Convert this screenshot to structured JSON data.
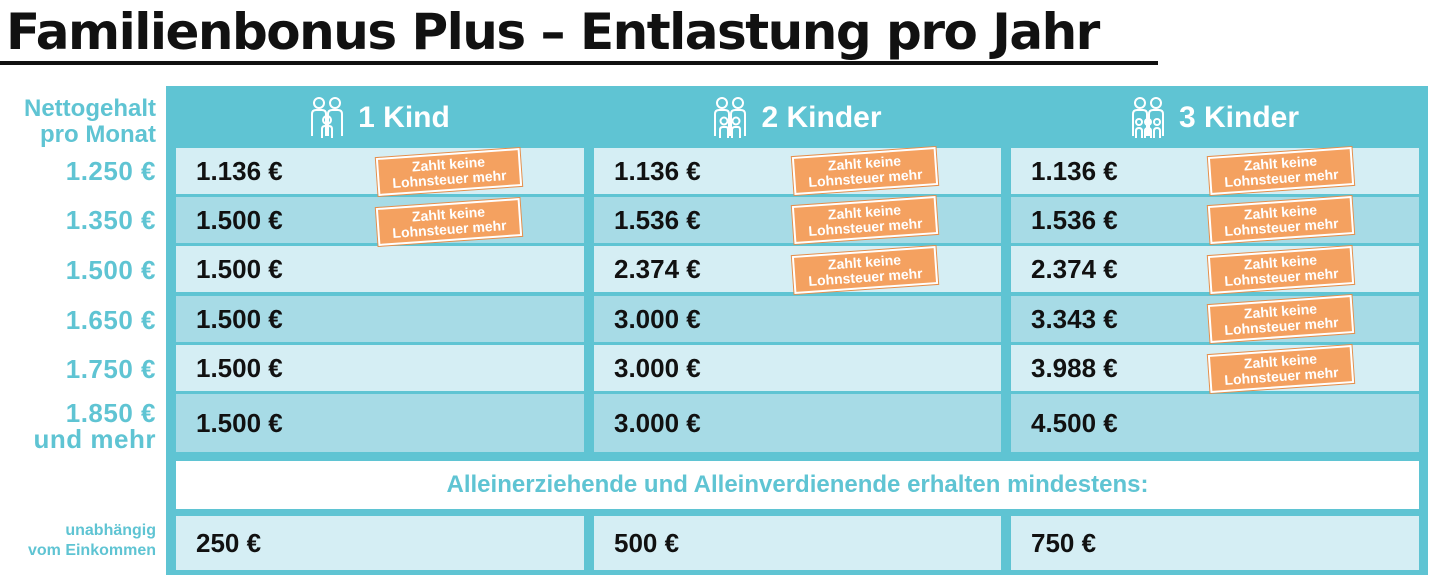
{
  "title": "Familienbonus Plus – Entlastung pro Jahr",
  "side": {
    "header_line1": "Nettogehalt",
    "header_line2": "pro Monat",
    "incomes": [
      "1.250 €",
      "1.350 €",
      "1.500 €",
      "1.650 €",
      "1.750 €",
      "1.850 €"
    ],
    "last_suffix": "und mehr",
    "footer_line1": "unabhängig",
    "footer_line2": "vom Einkommen"
  },
  "columns": [
    {
      "label": "1 Kind",
      "icon": "family-one-child-icon"
    },
    {
      "label": "2 Kinder",
      "icon": "family-two-children-icon"
    },
    {
      "label": "3 Kinder",
      "icon": "family-three-children-icon"
    }
  ],
  "rows": [
    [
      "1.136 €",
      "1.136 €",
      "1.136 €"
    ],
    [
      "1.500 €",
      "1.536 €",
      "1.536 €"
    ],
    [
      "1.500 €",
      "2.374 €",
      "2.374 €"
    ],
    [
      "1.500 €",
      "3.000 €",
      "3.343 €"
    ],
    [
      "1.500 €",
      "3.000 €",
      "3.988 €"
    ],
    [
      "1.500 €",
      "3.000 €",
      "4.500 €"
    ]
  ],
  "stamp": {
    "line1": "Zahlt keine",
    "line2": "Lohnsteuer mehr"
  },
  "banner": "Alleinerziehende und Alleinverdienende erhalten mindestens:",
  "minimum": [
    "250 €",
    "500 €",
    "750 €"
  ],
  "colors": {
    "teal": "#5fc4d3",
    "light": "#d5eef4",
    "mid": "#a7dbe6",
    "stamp": "#f4a160"
  }
}
